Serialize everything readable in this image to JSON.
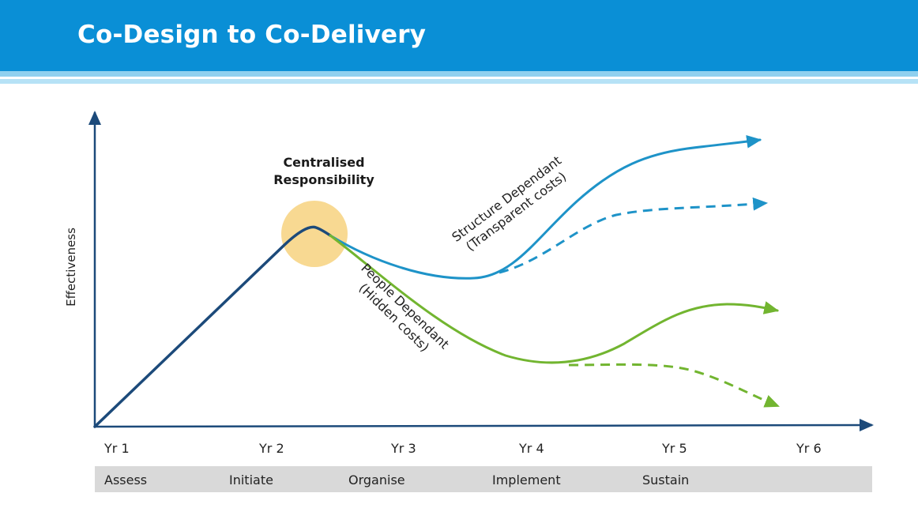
{
  "slide": {
    "title": "Co-Design to Co-Delivery"
  },
  "diagram": {
    "y_axis_label": "Effectiveness",
    "callout": {
      "line1": "Centralised",
      "line2": "Responsibility"
    },
    "structure_label": {
      "line1": "Structure Dependant",
      "line2": "(Transparent costs)"
    },
    "people_label": {
      "line1": "People Dependant",
      "line2": "(Hidden costs)"
    },
    "years": [
      "Yr 1",
      "Yr 2",
      "Yr 3",
      "Yr 4",
      "Yr 5",
      "Yr 6"
    ],
    "phases": [
      "Assess",
      "Initiate",
      "Organise",
      "Implement",
      "Sustain"
    ],
    "colors": {
      "header": "#0a8fd6",
      "axis": "#1c4a7a",
      "initial_curve": "#1c4a7a",
      "structure_curve": "#1e93c8",
      "people_curve": "#72b530",
      "highlight": "#f7d586"
    }
  }
}
